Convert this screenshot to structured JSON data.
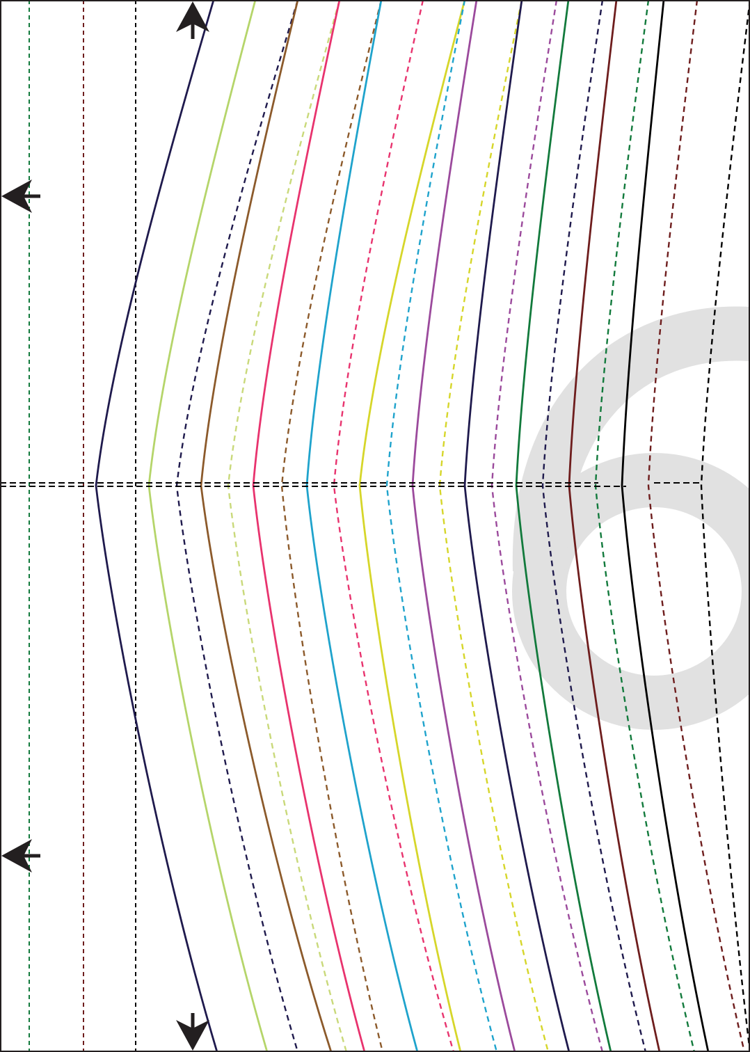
{
  "diagram": {
    "background": "#ffffff",
    "frame_color": "#231f20",
    "watermark": {
      "glyph": "6",
      "color": "#e1e1e1"
    },
    "curves": [
      {
        "name": "curve-01",
        "color": "#1f1a4d",
        "dashed": false
      },
      {
        "name": "curve-02",
        "color": "#b5d56a",
        "dashed": false
      },
      {
        "name": "curve-03",
        "color": "#1f1a4d",
        "dashed": true
      },
      {
        "name": "curve-04",
        "color": "#8c5a2b",
        "dashed": false
      },
      {
        "name": "curve-05",
        "color": "#c9d97a",
        "dashed": true
      },
      {
        "name": "curve-06",
        "color": "#e8336e",
        "dashed": false
      },
      {
        "name": "curve-07",
        "color": "#8c5a2b",
        "dashed": true
      },
      {
        "name": "curve-08",
        "color": "#1fa3cc",
        "dashed": false
      },
      {
        "name": "curve-09",
        "color": "#e8336e",
        "dashed": true
      },
      {
        "name": "curve-10",
        "color": "#d6d62a",
        "dashed": false
      },
      {
        "name": "curve-11",
        "color": "#1fa3cc",
        "dashed": true
      },
      {
        "name": "curve-12",
        "color": "#9b4a9c",
        "dashed": false
      },
      {
        "name": "curve-13",
        "color": "#d6d62a",
        "dashed": true
      },
      {
        "name": "curve-14",
        "color": "#1f1a4d",
        "dashed": false
      },
      {
        "name": "curve-15",
        "color": "#9b4a9c",
        "dashed": true
      },
      {
        "name": "curve-16",
        "color": "#127a3c",
        "dashed": false
      },
      {
        "name": "curve-17",
        "color": "#1f1a4d",
        "dashed": true
      },
      {
        "name": "curve-18",
        "color": "#6e1d1d",
        "dashed": false
      },
      {
        "name": "curve-19",
        "color": "#127a3c",
        "dashed": true
      },
      {
        "name": "curve-20",
        "color": "#000000",
        "dashed": false
      },
      {
        "name": "curve-21",
        "color": "#6e1d1d",
        "dashed": true
      },
      {
        "name": "curve-22",
        "color": "#000000",
        "dashed": true
      }
    ],
    "vertical_dashed_lines": [
      {
        "name": "vertical-green-dashed",
        "color": "#127a3c"
      },
      {
        "name": "vertical-maroon-dashed",
        "color": "#6e1d1d"
      },
      {
        "name": "vertical-black-dashed",
        "color": "#000000"
      }
    ],
    "horizontal_line_color": "#000000",
    "arrow_color": "#231f20",
    "arrows": [
      {
        "name": "up-arrow-icon",
        "direction": "up"
      },
      {
        "name": "down-arrow-icon",
        "direction": "down"
      },
      {
        "name": "left-arrow-icon-upper",
        "direction": "left"
      },
      {
        "name": "left-arrow-icon-lower",
        "direction": "left"
      }
    ]
  }
}
